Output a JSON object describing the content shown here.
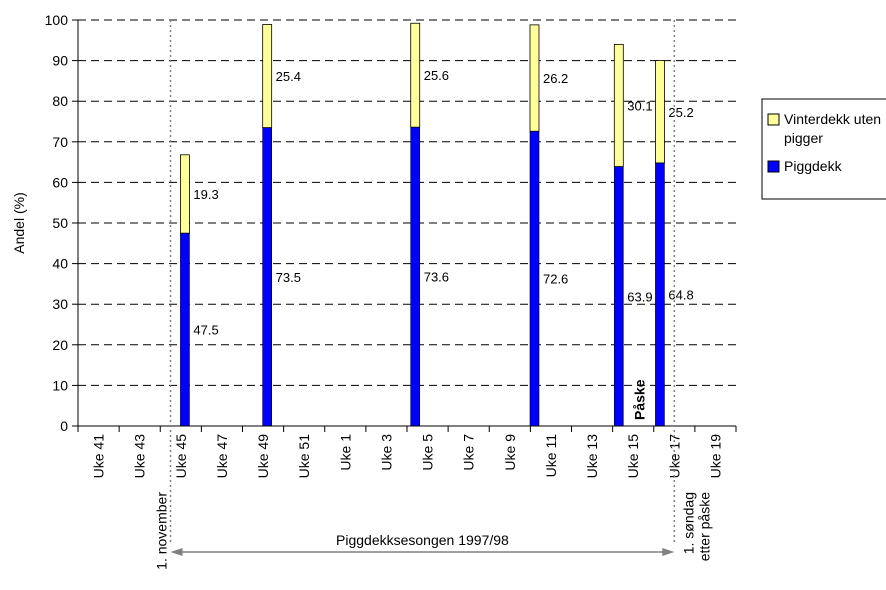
{
  "chart_data": {
    "type": "bar",
    "stacked": true,
    "ylabel": "Andel (%)",
    "ylim": [
      0,
      100
    ],
    "yticks": [
      0,
      10,
      20,
      30,
      40,
      50,
      60,
      70,
      80,
      90,
      100
    ],
    "grid": "horizontal dashed",
    "x_tick_labels": [
      "Uke 41",
      "Uke 43",
      "Uke 45",
      "Uke 47",
      "Uke 49",
      "Uke 51",
      "Uke 1",
      "Uke 3",
      "Uke 5",
      "Uke 7",
      "Uke 9",
      "Uke 11",
      "Uke 13",
      "Uke 15",
      "Uke 17",
      "Uke 19"
    ],
    "series": [
      {
        "name": "Piggdekk",
        "color": "#0000ff"
      },
      {
        "name": "Vinterdekk uten pigger",
        "legend_text": [
          "Vinterdekk uten",
          "pigger"
        ],
        "color": "#ffff99"
      }
    ],
    "points": [
      {
        "week_pos": 2.6,
        "piggdekk": 47.5,
        "vinterdekk": 19.3,
        "piggdekk_label": "47.5",
        "vinterdekk_label": "19.3"
      },
      {
        "week_pos": 4.6,
        "piggdekk": 73.5,
        "vinterdekk": 25.4,
        "piggdekk_label": "73.5",
        "vinterdekk_label": "25.4"
      },
      {
        "week_pos": 8.2,
        "piggdekk": 73.6,
        "vinterdekk": 25.6,
        "piggdekk_label": "73.6",
        "vinterdekk_label": "25.6"
      },
      {
        "week_pos": 11.1,
        "piggdekk": 72.6,
        "vinterdekk": 26.2,
        "piggdekk_label": "72.6",
        "vinterdekk_label": "26.2"
      },
      {
        "week_pos": 13.15,
        "piggdekk": 63.9,
        "vinterdekk": 30.1,
        "piggdekk_label": "63.9",
        "vinterdekk_label": "30.1"
      },
      {
        "week_pos": 14.15,
        "piggdekk": 64.8,
        "vinterdekk": 25.2,
        "piggdekk_label": "64.8",
        "vinterdekk_label": "25.2"
      }
    ],
    "legend_position": "right",
    "annotations": {
      "season_start": "1. november",
      "season_end": "1. søndag etter påske",
      "season_end_lines": [
        "1. søndag",
        "etter påske"
      ],
      "season": "Piggdekksesongen 1997/98",
      "easter": "Påske",
      "season_start_pos": 2.25,
      "season_end_pos": 14.5
    }
  }
}
